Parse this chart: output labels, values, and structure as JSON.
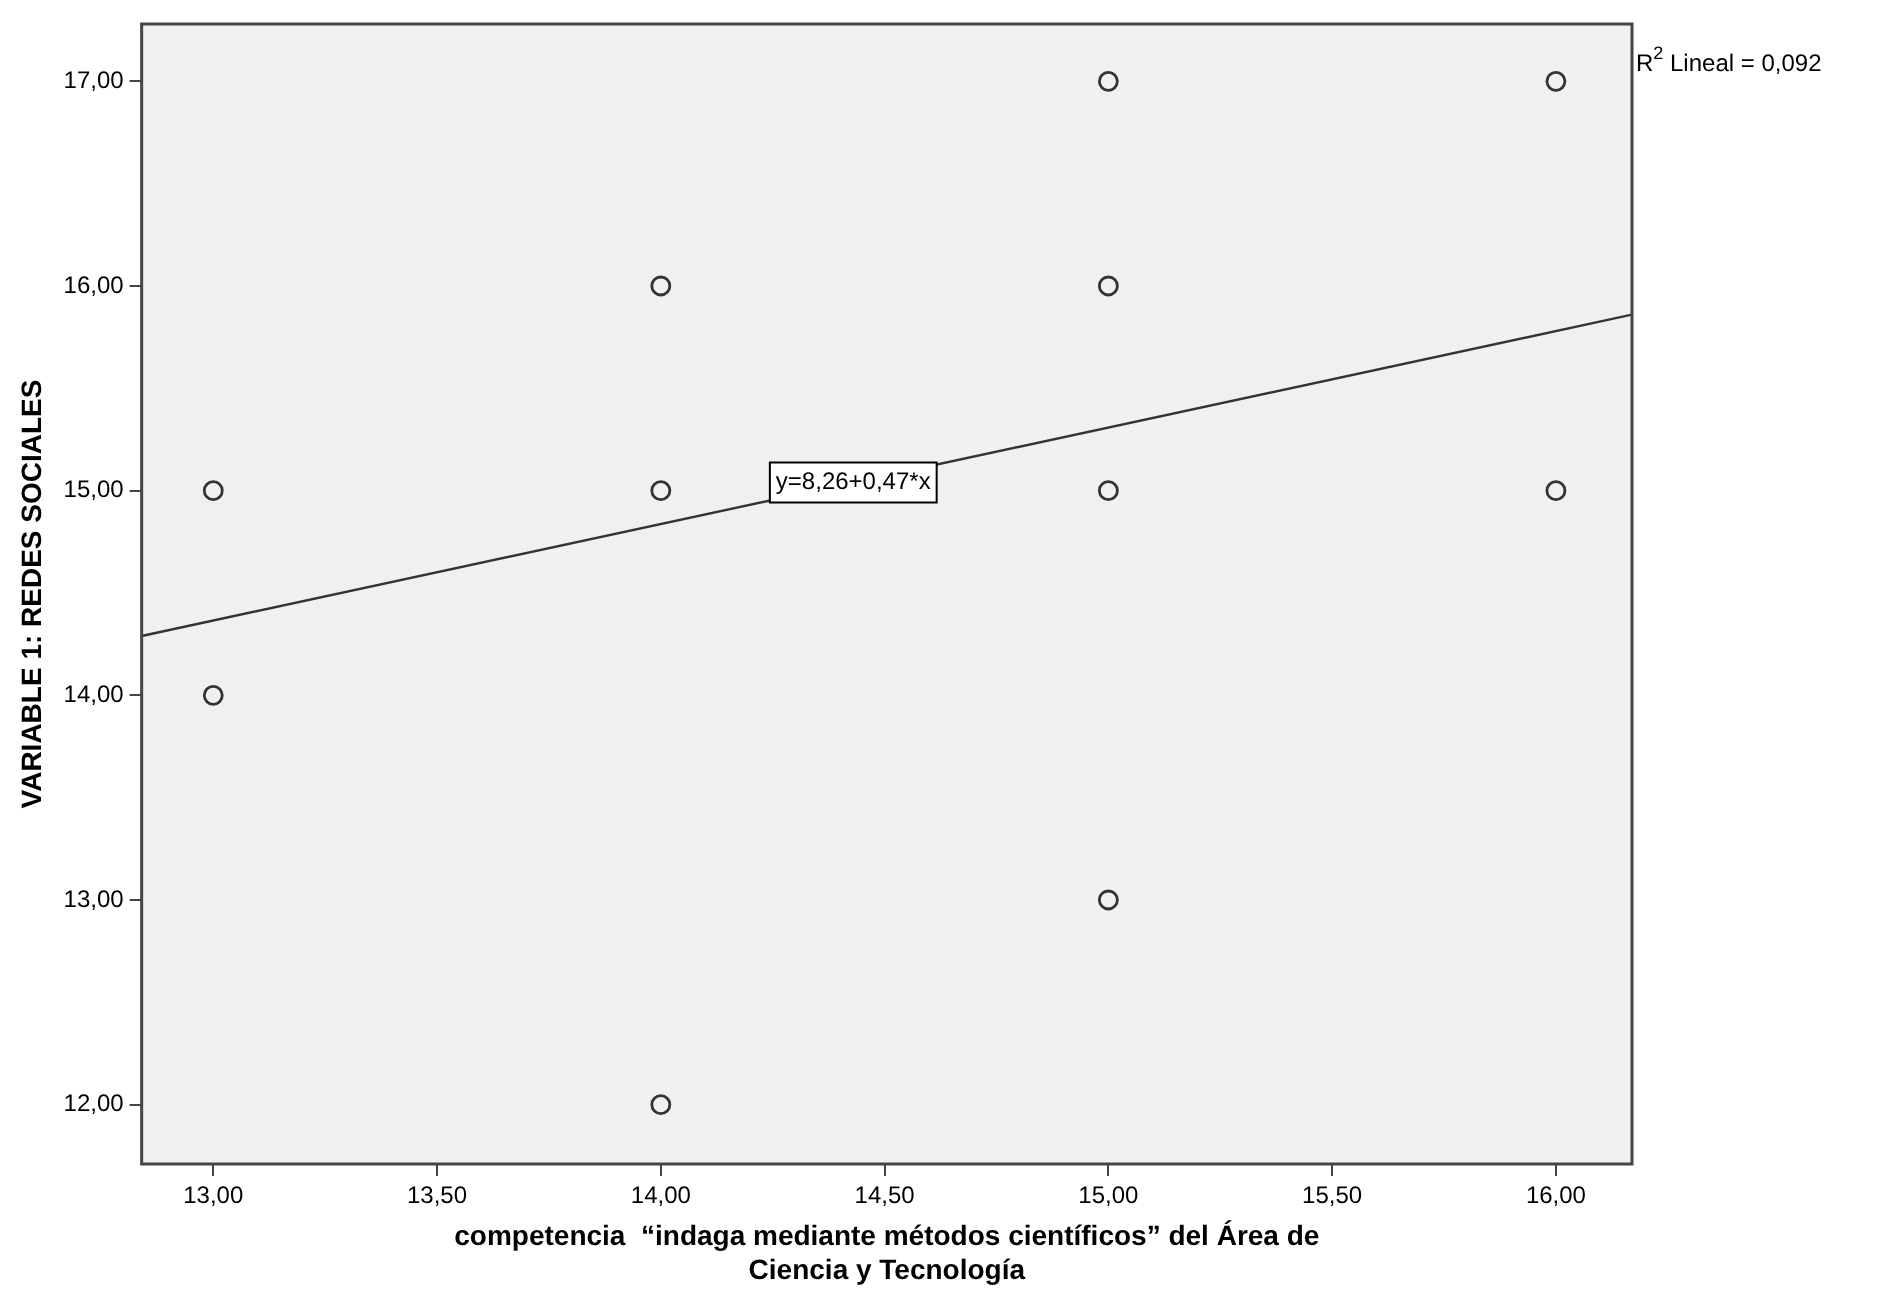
{
  "chart_data": {
    "type": "scatter",
    "xlabel": "competencia  “indaga mediante métodos científicos” del Área de Ciencia y Tecnología",
    "ylabel": "VARIABLE 1: REDES SOCIALES",
    "xlim": [
      12.84,
      16.17
    ],
    "ylim": [
      11.71,
      17.28
    ],
    "xticks": [
      {
        "value": 13,
        "label": "13,00"
      },
      {
        "value": 13.5,
        "label": "13,50"
      },
      {
        "value": 14,
        "label": "14,00"
      },
      {
        "value": 14.5,
        "label": "14,50"
      },
      {
        "value": 15,
        "label": "15,00"
      },
      {
        "value": 15.5,
        "label": "15,50"
      },
      {
        "value": 16,
        "label": "16,00"
      }
    ],
    "yticks": [
      {
        "value": 12,
        "label": "12,00"
      },
      {
        "value": 13,
        "label": "13,00"
      },
      {
        "value": 14,
        "label": "14,00"
      },
      {
        "value": 15,
        "label": "15,00"
      },
      {
        "value": 16,
        "label": "16,00"
      },
      {
        "value": 17,
        "label": "17,00"
      }
    ],
    "grid": false,
    "legend": false,
    "marker": "circle",
    "series": [
      {
        "color": "#333333",
        "x": [
          13,
          13,
          14,
          14,
          14,
          15,
          15,
          15,
          15,
          16,
          16
        ],
        "values": [
          15,
          14,
          16,
          15,
          12,
          17,
          16,
          15,
          13,
          17,
          15
        ]
      },
      {
        "type": "line",
        "color": "#333333",
        "marker": "none",
        "line_style": "solid",
        "x": [
          12.84,
          16.17
        ],
        "values": [
          14.29,
          15.86
        ]
      }
    ],
    "annotations": [
      {
        "text": "y=8,26+0,47*x",
        "x": 14.43,
        "y": 15.04
      },
      "R$^{2}$ Lineal = 0,092"
    ]
  }
}
